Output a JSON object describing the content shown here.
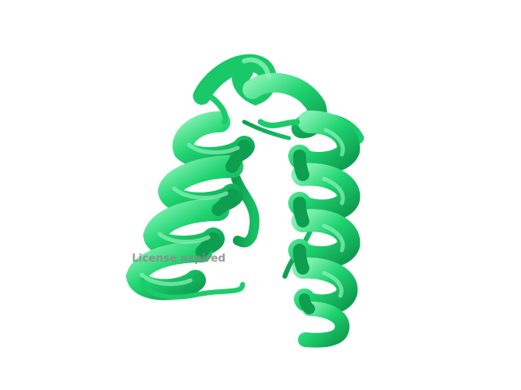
{
  "scene": {
    "background": "#ffffff",
    "ribbon_color": "#1fd470",
    "ribbon_dark": "#0e9e50",
    "ribbon_light": "#7ff0b0",
    "watermark_color": "#8a8a8a"
  },
  "watermark": {
    "text": "License expired"
  }
}
